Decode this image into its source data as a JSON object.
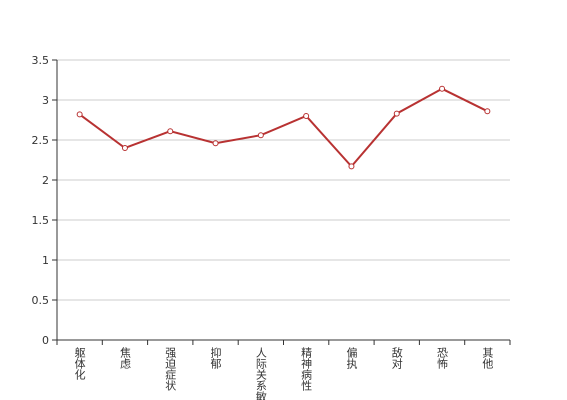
{
  "chart_data": {
    "type": "line",
    "categories": [
      "躯体化",
      "焦虑",
      "强迫症状",
      "抑郁",
      "人际关系敏感",
      "精神病性",
      "偏执",
      "敌对",
      "恐怖",
      "其他"
    ],
    "series": [
      {
        "color": "#b83232",
        "values": [
          2.82,
          2.4,
          2.61,
          2.46,
          2.56,
          2.8,
          2.17,
          2.83,
          3.14,
          2.86
        ]
      }
    ],
    "ylim": [
      0,
      3.5
    ],
    "yticks": [
      0,
      0.5,
      1,
      1.5,
      2,
      2.5,
      3,
      3.5
    ],
    "grid": true
  }
}
